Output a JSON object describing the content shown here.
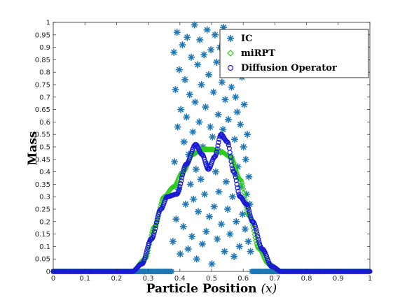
{
  "chart_data": {
    "type": "scatter",
    "title": "",
    "xlabel": "Particle Position (x)",
    "ylabel": "Mass",
    "xlim": [
      0,
      1
    ],
    "ylim": [
      0,
      1
    ],
    "xticks": [
      "0",
      "0.1",
      "0.2",
      "0.3",
      "0.4",
      "0.5",
      "0.6",
      "0.7",
      "0.8",
      "0.9",
      "1"
    ],
    "yticks": [
      "0",
      "0.05",
      "0.1",
      "0.15",
      "0.2",
      "0.25",
      "0.3",
      "0.35",
      "0.4",
      "0.45",
      "0.5",
      "0.55",
      "0.6",
      "0.65",
      "0.7",
      "0.75",
      "0.8",
      "0.85",
      "0.9",
      "0.95",
      "1"
    ],
    "grid": false,
    "legend_position": "top-right",
    "series": [
      {
        "name": "IC",
        "marker": "asterisk",
        "color": "#1f77b4",
        "description": "random masses in [0,1] for particles between x=0.375 and x=0.625; zero elsewhere",
        "points": [
          [
            0.378,
            0.12
          ],
          [
            0.381,
            0.88
          ],
          [
            0.383,
            0.44
          ],
          [
            0.386,
            0.73
          ],
          [
            0.388,
            0.21
          ],
          [
            0.391,
            0.96
          ],
          [
            0.393,
            0.58
          ],
          [
            0.396,
            0.33
          ],
          [
            0.398,
            0.81
          ],
          [
            0.401,
            0.07
          ],
          [
            0.403,
            0.65
          ],
          [
            0.406,
            0.39
          ],
          [
            0.408,
            0.91
          ],
          [
            0.411,
            0.18
          ],
          [
            0.413,
            0.52
          ],
          [
            0.416,
            0.77
          ],
          [
            0.418,
            0.27
          ],
          [
            0.421,
            0.62
          ],
          [
            0.423,
            0.94
          ],
          [
            0.426,
            0.09
          ],
          [
            0.428,
            0.47
          ],
          [
            0.431,
            0.71
          ],
          [
            0.433,
            0.35
          ],
          [
            0.436,
            0.86
          ],
          [
            0.438,
            0.14
          ],
          [
            0.441,
            0.56
          ],
          [
            0.443,
            0.29
          ],
          [
            0.446,
            0.99
          ],
          [
            0.448,
            0.68
          ],
          [
            0.451,
            0.41
          ],
          [
            0.453,
            0.05
          ],
          [
            0.456,
            0.83
          ],
          [
            0.458,
            0.24
          ],
          [
            0.461,
            0.6
          ],
          [
            0.463,
            0.93
          ],
          [
            0.466,
            0.37
          ],
          [
            0.468,
            0.75
          ],
          [
            0.471,
            0.11
          ],
          [
            0.473,
            0.5
          ],
          [
            0.476,
            0.87
          ],
          [
            0.478,
            0.31
          ],
          [
            0.481,
            0.66
          ],
          [
            0.483,
            0.16
          ],
          [
            0.486,
            0.97
          ],
          [
            0.488,
            0.43
          ],
          [
            0.491,
            0.79
          ],
          [
            0.493,
            0.22
          ],
          [
            0.496,
            0.58
          ],
          [
            0.498,
            0.89
          ],
          [
            0.501,
            0.03
          ],
          [
            0.503,
            0.54
          ],
          [
            0.506,
            0.72
          ],
          [
            0.508,
            0.26
          ],
          [
            0.511,
            0.95
          ],
          [
            0.513,
            0.4
          ],
          [
            0.516,
            0.84
          ],
          [
            0.518,
            0.13
          ],
          [
            0.521,
            0.63
          ],
          [
            0.523,
            0.32
          ],
          [
            0.526,
            0.9
          ],
          [
            0.528,
            0.48
          ],
          [
            0.531,
            0.19
          ],
          [
            0.533,
            0.76
          ],
          [
            0.536,
            0.57
          ],
          [
            0.538,
            0.98
          ],
          [
            0.541,
            0.08
          ],
          [
            0.543,
            0.69
          ],
          [
            0.546,
            0.36
          ],
          [
            0.548,
            0.82
          ],
          [
            0.551,
            0.25
          ],
          [
            0.553,
            0.61
          ],
          [
            0.556,
            0.92
          ],
          [
            0.558,
            0.15
          ],
          [
            0.561,
            0.46
          ],
          [
            0.563,
            0.74
          ],
          [
            0.566,
            0.3
          ],
          [
            0.568,
            0.85
          ],
          [
            0.571,
            0.06
          ],
          [
            0.573,
            0.53
          ],
          [
            0.576,
            0.7
          ],
          [
            0.578,
            0.2
          ],
          [
            0.581,
            0.64
          ],
          [
            0.583,
            0.42
          ],
          [
            0.586,
            0.88
          ],
          [
            0.588,
            0.1
          ],
          [
            0.591,
            0.59
          ],
          [
            0.593,
            0.34
          ],
          [
            0.596,
            0.78
          ],
          [
            0.598,
            0.23
          ],
          [
            0.601,
            0.5
          ],
          [
            0.603,
            0.67
          ],
          [
            0.606,
            0.17
          ],
          [
            0.608,
            0.45
          ],
          [
            0.611,
            0.31
          ],
          [
            0.613,
            0.55
          ],
          [
            0.616,
            0.12
          ],
          [
            0.618,
            0.38
          ],
          [
            0.621,
            0.27
          ],
          [
            0.623,
            0.08
          ]
        ]
      },
      {
        "name": "miRPT",
        "marker": "diamond",
        "color": "#2ecc1a",
        "curve": [
          [
            0,
            0
          ],
          [
            0.25,
            0
          ],
          [
            0.29,
            0.05
          ],
          [
            0.32,
            0.18
          ],
          [
            0.35,
            0.3
          ],
          [
            0.38,
            0.34
          ],
          [
            0.41,
            0.4
          ],
          [
            0.44,
            0.47
          ],
          [
            0.47,
            0.49
          ],
          [
            0.5,
            0.49
          ],
          [
            0.53,
            0.48
          ],
          [
            0.56,
            0.46
          ],
          [
            0.59,
            0.37
          ],
          [
            0.62,
            0.22
          ],
          [
            0.65,
            0.09
          ],
          [
            0.68,
            0.03
          ],
          [
            0.72,
            0
          ],
          [
            1,
            0
          ]
        ]
      },
      {
        "name": "Diffusion Operator",
        "marker": "circle",
        "color": "#1a1ad4",
        "curve": [
          [
            0,
            0
          ],
          [
            0.25,
            0
          ],
          [
            0.28,
            0.03
          ],
          [
            0.31,
            0.13
          ],
          [
            0.34,
            0.25
          ],
          [
            0.36,
            0.3
          ],
          [
            0.39,
            0.31
          ],
          [
            0.42,
            0.43
          ],
          [
            0.45,
            0.51
          ],
          [
            0.47,
            0.47
          ],
          [
            0.49,
            0.41
          ],
          [
            0.51,
            0.46
          ],
          [
            0.53,
            0.55
          ],
          [
            0.55,
            0.52
          ],
          [
            0.57,
            0.4
          ],
          [
            0.59,
            0.3
          ],
          [
            0.61,
            0.27
          ],
          [
            0.63,
            0.2
          ],
          [
            0.66,
            0.09
          ],
          [
            0.69,
            0.02
          ],
          [
            0.72,
            0
          ],
          [
            1,
            0
          ]
        ]
      }
    ]
  }
}
